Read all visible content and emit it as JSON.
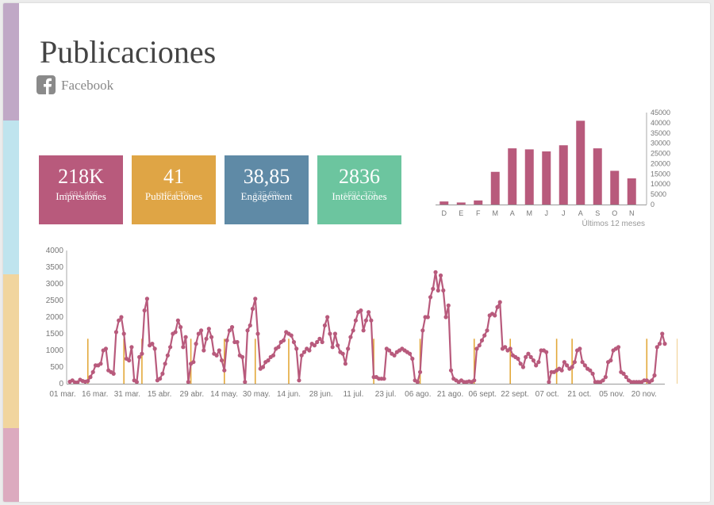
{
  "page": {
    "title": "Publicaciones",
    "network": "Facebook",
    "stripe_colors": [
      "#c0a8c6",
      "#bfe4ee",
      "#f1d59e",
      "#dcaabf"
    ]
  },
  "kpis": [
    {
      "value": "218K",
      "sub": "+691.466",
      "label": "Impresiones",
      "color": "#b85a7c"
    },
    {
      "value": "41",
      "sub": "+46.43%",
      "label": "Publicaciones",
      "color": "#dfa545"
    },
    {
      "value": "38,85",
      "sub": "+35.6%",
      "label": "Engagement",
      "color": "#5f8aa6"
    },
    {
      "value": "2836",
      "sub": "+691.379",
      "label": "Interacciones",
      "color": "#6cc59f"
    }
  ],
  "chart_data": [
    {
      "type": "bar",
      "categories": [
        "D",
        "E",
        "F",
        "M",
        "A",
        "M",
        "J",
        "J",
        "A",
        "S",
        "O",
        "N"
      ],
      "values": [
        1500,
        1000,
        2000,
        16000,
        27500,
        27000,
        26000,
        29000,
        41000,
        27500,
        16500,
        12800
      ],
      "ylim": [
        0,
        45000
      ],
      "yticks": [
        0,
        5000,
        10000,
        15000,
        20000,
        25000,
        30000,
        35000,
        40000,
        45000
      ],
      "xlabel": "Últimos 12 meses",
      "color": "#b85a7c",
      "grid": false
    },
    {
      "type": "line",
      "series": [
        {
          "type": "line",
          "color": "#b85a7c",
          "values": [
            60,
            100,
            40,
            40,
            120,
            80,
            60,
            80,
            200,
            350,
            550,
            550,
            600,
            1000,
            1050,
            400,
            350,
            300,
            1550,
            1900,
            2000,
            1500,
            750,
            700,
            1100,
            100,
            50,
            800,
            900,
            2200,
            2550,
            1150,
            1200,
            1050,
            100,
            150,
            300,
            600,
            850,
            1100,
            1500,
            1550,
            1900,
            1700,
            1100,
            1400,
            50,
            600,
            650,
            1200,
            1500,
            1600,
            1000,
            1350,
            1650,
            1400,
            900,
            850,
            1000,
            700,
            400,
            1300,
            1600,
            1700,
            1250,
            1250,
            850,
            800,
            50,
            1600,
            1750,
            2250,
            2550,
            1500,
            450,
            500,
            650,
            700,
            800,
            850,
            1050,
            1100,
            1250,
            1300,
            1550,
            1500,
            1450,
            1250,
            1050,
            100,
            850,
            950,
            1050,
            1000,
            1200,
            1150,
            1250,
            1350,
            1250,
            1750,
            2000,
            1500,
            1100,
            1500,
            1150,
            950,
            900,
            600,
            1050,
            1400,
            1600,
            1900,
            2150,
            2200,
            1600,
            1900,
            2150,
            1900,
            200,
            200,
            150,
            150,
            150,
            1050,
            1000,
            900,
            850,
            950,
            1000,
            1050,
            1000,
            950,
            900,
            750,
            100,
            50,
            350,
            1600,
            2000,
            2000,
            2600,
            2850,
            3350,
            2800,
            3250,
            2800,
            2000,
            2350,
            400,
            150,
            100,
            50,
            100,
            50,
            50,
            70,
            50,
            100,
            1050,
            1150,
            1300,
            1450,
            1600,
            2050,
            2100,
            2050,
            2300,
            2450,
            1050,
            1100,
            1000,
            1050,
            850,
            800,
            750,
            600,
            500,
            800,
            900,
            800,
            700,
            550,
            650,
            1000,
            1000,
            950,
            50,
            350,
            350,
            400,
            450,
            400,
            650,
            550,
            450,
            500,
            650,
            1000,
            1050,
            650,
            550,
            450,
            400,
            300,
            50,
            50,
            50,
            100,
            200,
            650,
            700,
            1000,
            1050,
            1100,
            350,
            300,
            200,
            100,
            50,
            50,
            50,
            50,
            50,
            100,
            100,
            50,
            100,
            250,
            1100,
            1200,
            1500,
            1200
          ],
          "labels": [
            "01 mar.",
            "16 mar.",
            "31 mar.",
            "15 abr.",
            "29 abr.",
            "14 may.",
            "30 may.",
            "14 jun.",
            "28 jun.",
            "11 jul.",
            "23 jul.",
            "06 ago.",
            "21 ago.",
            "06 sept.",
            "22 sept.",
            "07 oct.",
            "21 oct.",
            "05 nov.",
            "20 nov."
          ]
        },
        {
          "type": "bar",
          "color": "#e3a83a",
          "values": [
            0,
            0,
            0,
            0,
            0,
            0,
            0,
            1350,
            0,
            0,
            0,
            0,
            0,
            0,
            0,
            0,
            0,
            0,
            0,
            0,
            0,
            1350,
            0,
            0,
            0,
            0,
            0,
            0,
            1350,
            0,
            0,
            0,
            0,
            0,
            0,
            0,
            0,
            0,
            0,
            0,
            0,
            0,
            0,
            0,
            0,
            0,
            0,
            1350,
            0,
            0,
            0,
            0,
            0,
            0,
            0,
            0,
            0,
            0,
            0,
            0,
            1350,
            0,
            0,
            0,
            0,
            0,
            0,
            0,
            0,
            0,
            0,
            0,
            1350,
            0,
            0,
            0,
            0,
            0,
            0,
            0,
            0,
            0,
            0,
            0,
            0,
            1350,
            0,
            0,
            0,
            0,
            0,
            0,
            0,
            0,
            0,
            0,
            0,
            0,
            0,
            0,
            0,
            0,
            0,
            0,
            0,
            0,
            0,
            0,
            0,
            0,
            0,
            0,
            0,
            0,
            0,
            0,
            0,
            0,
            1350,
            0,
            0,
            0,
            0,
            0,
            0,
            0,
            0,
            0,
            0,
            0,
            0,
            0,
            0,
            0,
            0,
            0,
            1350,
            0,
            0,
            0,
            0,
            0,
            0,
            0,
            0,
            0,
            0,
            0,
            0,
            0,
            0,
            0,
            0,
            0,
            0,
            0,
            0,
            1350,
            0,
            0,
            0,
            0,
            0,
            0,
            0,
            0,
            0,
            0,
            0,
            0,
            0,
            1350,
            0,
            0,
            0,
            0,
            0,
            0,
            0,
            0,
            0,
            0,
            0,
            0,
            0,
            0,
            0,
            0,
            0,
            1350,
            0,
            0,
            0,
            0,
            0,
            1350,
            0,
            0,
            0,
            0,
            0,
            0,
            0,
            0,
            0,
            0,
            0,
            0,
            0,
            0,
            0,
            0,
            0,
            0,
            0,
            0,
            0,
            0,
            0,
            0,
            0,
            0,
            0,
            0,
            1350,
            0,
            0,
            0,
            0,
            0,
            0,
            0,
            0,
            0,
            0,
            0,
            1350,
            0,
            0,
            0,
            0
          ]
        }
      ],
      "ylim": [
        0,
        4000
      ],
      "yticks": [
        0,
        500,
        1000,
        1500,
        2000,
        2500,
        3000,
        3500,
        4000
      ],
      "grid": false
    }
  ]
}
